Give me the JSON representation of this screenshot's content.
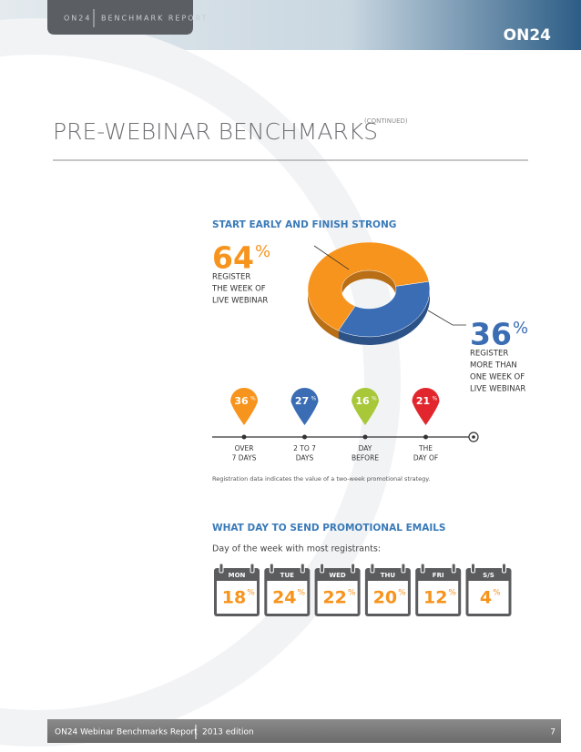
{
  "header": {
    "brand": "ON24",
    "section": "BENCHMARK REPORT",
    "logo": "ON24"
  },
  "page_title": "PRE-WEBINAR BENCHMARKS",
  "page_title_note": "(CONTINUED)",
  "unit": "%",
  "registration": {
    "title": "START EARLY AND FINISH STRONG",
    "chart": {
      "type": "pie",
      "slices": [
        {
          "value": 64,
          "color": "#f7941d",
          "label_lines": [
            "REGISTER",
            "THE WEEK OF",
            "LIVE WEBINAR"
          ]
        },
        {
          "value": 36,
          "color": "#3b6db4",
          "label_lines": [
            "REGISTER",
            "MORE THAN",
            "ONE WEEK OF",
            "LIVE WEBINAR"
          ]
        }
      ]
    },
    "timeline": [
      {
        "value": 36,
        "color": "#f7941d",
        "label_lines": [
          "OVER",
          "7 DAYS"
        ]
      },
      {
        "value": 27,
        "color": "#3b6db4",
        "label_lines": [
          "2 TO 7",
          "DAYS"
        ]
      },
      {
        "value": 16,
        "color": "#a8c83a",
        "label_lines": [
          "DAY",
          "BEFORE"
        ]
      },
      {
        "value": 21,
        "color": "#e1272d",
        "label_lines": [
          "THE",
          "DAY OF"
        ]
      }
    ],
    "footnote": "Registration data indicates the value of a two-week promotional strategy."
  },
  "emails": {
    "title": "WHAT DAY TO SEND PROMOTIONAL EMAILS",
    "subtitle": "Day of the week with most registrants:",
    "days": [
      {
        "day": "MON",
        "value": 18
      },
      {
        "day": "TUE",
        "value": 24
      },
      {
        "day": "WED",
        "value": 22
      },
      {
        "day": "THU",
        "value": 20
      },
      {
        "day": "FRI",
        "value": 12
      },
      {
        "day": "S/S",
        "value": 4
      }
    ]
  },
  "footer": {
    "report": "ON24 Webinar Benchmarks Report",
    "edition": "2013 edition",
    "page": "7"
  }
}
